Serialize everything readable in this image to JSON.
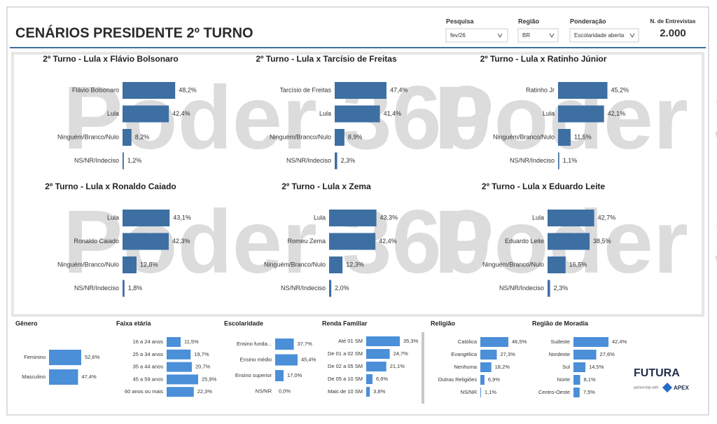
{
  "header": {
    "title": "CENÁRIOS PRESIDENTE 2º TURNO"
  },
  "filters": [
    {
      "label": "Pesquisa",
      "value": "fev/26"
    },
    {
      "label": "Região",
      "value": "BR"
    },
    {
      "label": "Ponderação",
      "value": "Escolaridade aberta"
    }
  ],
  "kpi": {
    "label": "N. de Entrevistas",
    "value": "2.000"
  },
  "watermark": "Poder 360",
  "logo": {
    "name": "FUTURA",
    "partnership": "partnership with",
    "partner": "APEX"
  },
  "chart_data": [
    {
      "type": "bar",
      "title": "2º Turno - Lula x Flávio Bolsonaro",
      "color": "#3d6fa3",
      "categories": [
        "Flávio Bolsonaro",
        "Lula",
        "Ninguém/Branco/Nulo",
        "NS/NR/Indeciso"
      ],
      "values": [
        48.2,
        42.4,
        8.2,
        1.2
      ],
      "value_labels": [
        "48,2%",
        "42,4%",
        "8,2%",
        "1,2%"
      ]
    },
    {
      "type": "bar",
      "title": "2º Turno - Lula x Tarcísio de Freitas",
      "color": "#3d6fa3",
      "categories": [
        "Tarcísio de Freitas",
        "Lula",
        "Ninguém/Branco/Nulo",
        "NS/NR/Indeciso"
      ],
      "values": [
        47.4,
        41.4,
        8.9,
        2.3
      ],
      "value_labels": [
        "47,4%",
        "41,4%",
        "8,9%",
        "2,3%"
      ]
    },
    {
      "type": "bar",
      "title": "2º Turno - Lula x Ratinho Júnior",
      "color": "#3d6fa3",
      "categories": [
        "Ratinho Jr",
        "Lula",
        "Ninguém/Branco/Nulo",
        "NS/NR/Indeciso"
      ],
      "values": [
        45.2,
        42.1,
        11.5,
        1.1
      ],
      "value_labels": [
        "45,2%",
        "42,1%",
        "11,5%",
        "1,1%"
      ]
    },
    {
      "type": "bar",
      "title": "2º Turno - Lula x Ronaldo Caiado",
      "color": "#3d6fa3",
      "categories": [
        "Lula",
        "Ronaldo Caiado",
        "Ninguém/Branco/Nulo",
        "NS/NR/Indeciso"
      ],
      "values": [
        43.1,
        42.3,
        12.8,
        1.8
      ],
      "value_labels": [
        "43,1%",
        "42,3%",
        "12,8%",
        "1,8%"
      ]
    },
    {
      "type": "bar",
      "title": "2º Turno - Lula x Zema",
      "color": "#3d6fa3",
      "categories": [
        "Lula",
        "Romeu Zema",
        "Ninguém/Branco/Nulo",
        "NS/NR/Indeciso"
      ],
      "values": [
        43.3,
        42.4,
        12.3,
        2.0
      ],
      "value_labels": [
        "43,3%",
        "42,4%",
        "12,3%",
        "2,0%"
      ]
    },
    {
      "type": "bar",
      "title": "2º Turno - Lula x Eduardo Leite",
      "color": "#3d6fa3",
      "categories": [
        "Lula",
        "Eduardo Leite",
        "Ninguém/Branco/Nulo",
        "NS/NR/Indeciso"
      ],
      "values": [
        42.7,
        38.5,
        16.5,
        2.3
      ],
      "value_labels": [
        "42,7%",
        "38,5%",
        "16,5%",
        "2,3%"
      ]
    },
    {
      "type": "bar",
      "title": "Gênero",
      "color": "#4a8fd8",
      "categories": [
        "Feminino",
        "Masculino"
      ],
      "values": [
        52.6,
        47.4
      ],
      "value_labels": [
        "52,6%",
        "47,4%"
      ]
    },
    {
      "type": "bar",
      "title": "Faixa etária",
      "color": "#4a8fd8",
      "categories": [
        "16 a 24 anos",
        "25 a 34 anos",
        "35 a 44 anos",
        "45 a 59 anos",
        "60 anos ou mais"
      ],
      "values": [
        11.5,
        19.7,
        20.7,
        25.9,
        22.3
      ],
      "value_labels": [
        "11,5%",
        "19,7%",
        "20,7%",
        "25,9%",
        "22,3%"
      ]
    },
    {
      "type": "bar",
      "title": "Escolaridade",
      "color": "#4a8fd8",
      "categories": [
        "Ensino funda...",
        "Ensino médio",
        "Ensino superior",
        "NS/NR"
      ],
      "values": [
        37.7,
        45.4,
        17.0,
        0.0
      ],
      "value_labels": [
        "37,7%",
        "45,4%",
        "17,0%",
        "0,0%"
      ]
    },
    {
      "type": "bar",
      "title": "Renda Familiar",
      "color": "#4a8fd8",
      "categories": [
        "Até 01 SM",
        "De 01 a 02 SM",
        "De 02 a 05 SM",
        "De 05 a 10 SM",
        "Mais de 10 SM"
      ],
      "values": [
        35.3,
        24.7,
        21.1,
        6.6,
        3.8
      ],
      "value_labels": [
        "35,3%",
        "24,7%",
        "21,1%",
        "6,6%",
        "3,8%"
      ]
    },
    {
      "type": "bar",
      "title": "Religião",
      "color": "#4a8fd8",
      "categories": [
        "Católica",
        "Evangélica",
        "Nenhuma",
        "Outras Religiões",
        "NS/NR"
      ],
      "values": [
        46.5,
        27.3,
        18.2,
        6.9,
        1.1
      ],
      "value_labels": [
        "46,5%",
        "27,3%",
        "18,2%",
        "6,9%",
        "1,1%"
      ]
    },
    {
      "type": "bar",
      "title": "Região de Moradia",
      "color": "#4a8fd8",
      "categories": [
        "Sudeste",
        "Nordeste",
        "Sul",
        "Norte",
        "Centro-Oeste"
      ],
      "values": [
        42.4,
        27.6,
        14.5,
        8.1,
        7.5
      ],
      "value_labels": [
        "42,4%",
        "27,6%",
        "14,5%",
        "8,1%",
        "7,5%"
      ]
    }
  ]
}
